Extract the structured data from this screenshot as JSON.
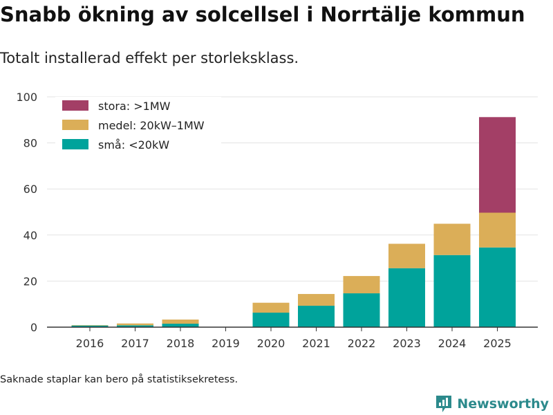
{
  "header": {
    "title": "Snabb ökning av solcellsel i Norrtälje kommun",
    "subtitle": "Totalt installerad effekt per storleksklass."
  },
  "footer": {
    "note": "Saknade staplar kan bero på statistiksekretess.",
    "brand": "Newsworthy",
    "brand_icon": "newsworthy-logo-icon"
  },
  "colors": {
    "stora": "#a33f66",
    "medel": "#dbae58",
    "sma": "#00a39b",
    "grid": "#e3e3e3",
    "axis": "#333333",
    "brand": "#2c8a8c"
  },
  "chart_data": {
    "type": "bar",
    "stacked": true,
    "title": "Snabb ökning av solcellsel i Norrtälje kommun",
    "subtitle": "Totalt installerad effekt per storleksklass.",
    "xlabel": "",
    "ylabel": "",
    "ylim": [
      0,
      100
    ],
    "yticks": [
      0,
      20,
      40,
      60,
      80,
      100
    ],
    "grid": true,
    "legend_position": "top-left",
    "categories": [
      "2016",
      "2017",
      "2018",
      "2019",
      "2020",
      "2021",
      "2022",
      "2023",
      "2024",
      "2025"
    ],
    "series": [
      {
        "key": "sma",
        "name": "små: <20kW",
        "color": "#00a39b",
        "values": [
          0.7,
          0.8,
          1.5,
          0,
          6.3,
          9.3,
          14.7,
          25.6,
          31.3,
          34.6
        ]
      },
      {
        "key": "medel",
        "name": "medel: 20kW–1MW",
        "color": "#dbae58",
        "values": [
          0.2,
          0.8,
          1.8,
          0,
          4.3,
          5.1,
          7.5,
          10.6,
          13.6,
          15.1
        ]
      },
      {
        "key": "stora",
        "name": "stora: >1MW",
        "color": "#a33f66",
        "values": [
          0,
          0,
          0,
          0,
          0,
          0,
          0,
          0,
          0,
          41.5
        ]
      }
    ],
    "legend_order": [
      "stora",
      "medel",
      "sma"
    ]
  }
}
